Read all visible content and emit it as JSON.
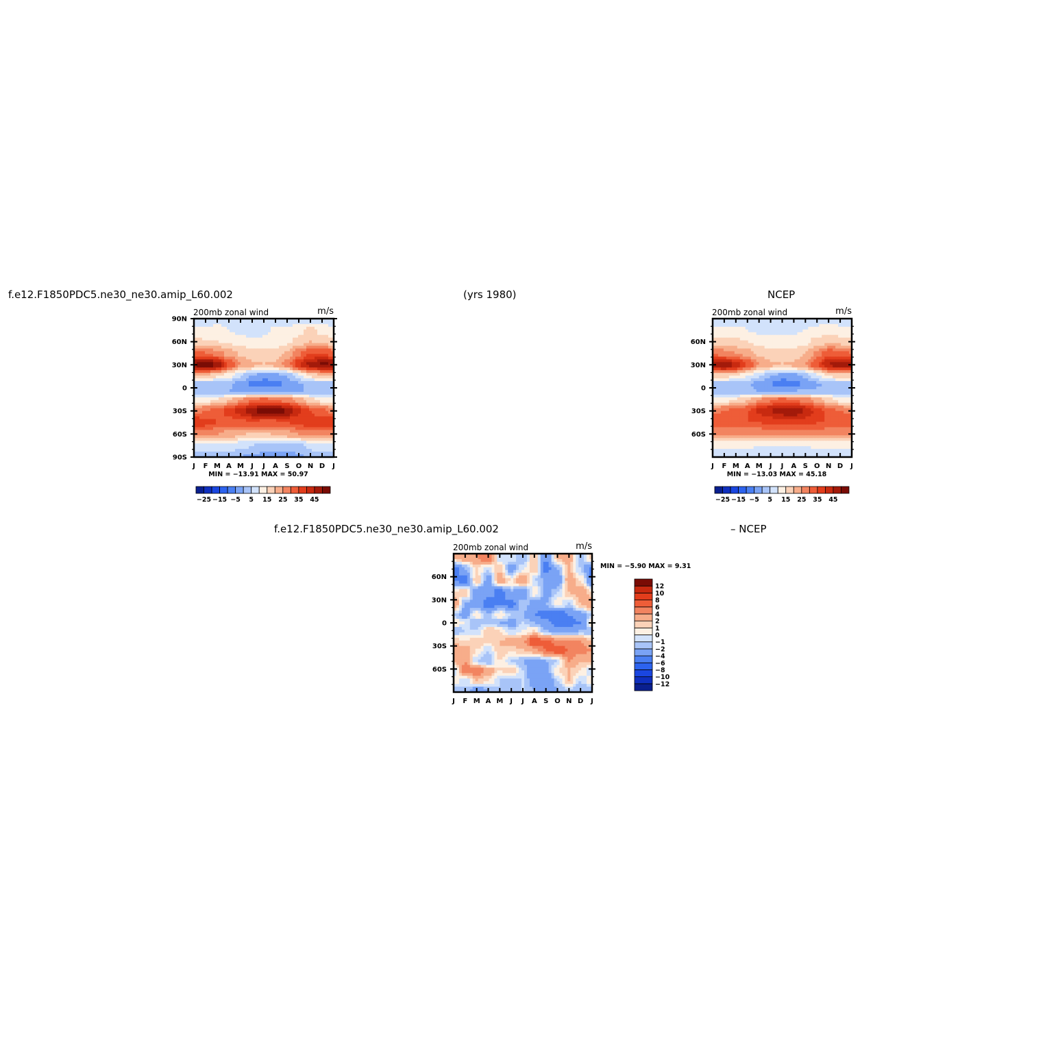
{
  "header": {
    "case_name": "f.e12.F1850PDC5.ne30_ne30.amip_L60.002",
    "years": "(yrs 1980)",
    "obs_name": "NCEP",
    "diff_case_name": "f.e12.F1850PDC5.ne30_ne30.amip_L60.002",
    "diff_obs_name": "– NCEP"
  },
  "chart_data": [
    {
      "type": "heatmap",
      "id": "model",
      "left_title": "200mb zonal wind",
      "right_title": "m/s",
      "x_ticks": [
        "J",
        "F",
        "M",
        "A",
        "M",
        "J",
        "J",
        "A",
        "S",
        "O",
        "N",
        "D",
        "J"
      ],
      "y_ticks": [
        "90N",
        "60N",
        "30N",
        "0",
        "30S",
        "60S",
        "90S"
      ],
      "ylim": [
        -90,
        90
      ],
      "stats": "MIN = −13.91  MAX =   50.97",
      "colorbar": {
        "orientation": "horizontal",
        "labels": [
          "−25",
          "−15",
          "−5",
          "5",
          "15",
          "25",
          "35",
          "45"
        ],
        "levels": [
          -30,
          -25,
          -20,
          -15,
          -10,
          -5,
          0,
          5,
          10,
          15,
          20,
          25,
          30,
          35,
          40,
          45,
          50
        ],
        "colors": [
          "#0a1f8f",
          "#0f2fbf",
          "#1a46e0",
          "#2d63ee",
          "#4a7ff2",
          "#7aa3f5",
          "#a8c4f8",
          "#d2e2fb",
          "#fdf0e3",
          "#fbd2b8",
          "#f7ad8a",
          "#f28460",
          "#ee5d38",
          "#e23d1c",
          "#c82a10",
          "#a31a0a",
          "#7a0c05"
        ]
      },
      "monthly_profiles": [
        {
          "lat": 90,
          "u": [
            2,
            2,
            2,
            3,
            3,
            3,
            2,
            2,
            2,
            2,
            2,
            2
          ]
        },
        {
          "lat": 75,
          "u": [
            6,
            6,
            7,
            5,
            3,
            2,
            4,
            6,
            6,
            8,
            12,
            8
          ]
        },
        {
          "lat": 60,
          "u": [
            12,
            10,
            10,
            9,
            8,
            6,
            6,
            6,
            9,
            12,
            15,
            14
          ]
        },
        {
          "lat": 45,
          "u": [
            28,
            25,
            22,
            18,
            14,
            12,
            12,
            12,
            16,
            24,
            30,
            30
          ]
        },
        {
          "lat": 30,
          "u": [
            45,
            50,
            44,
            30,
            20,
            16,
            15,
            16,
            22,
            35,
            42,
            46
          ]
        },
        {
          "lat": 15,
          "u": [
            15,
            13,
            10,
            6,
            0,
            -6,
            -8,
            -8,
            -5,
            3,
            10,
            14
          ]
        },
        {
          "lat": 5,
          "u": [
            -2,
            -3,
            -3,
            -4,
            -8,
            -11,
            -13,
            -12,
            -9,
            -6,
            -4,
            -2
          ]
        },
        {
          "lat": -5,
          "u": [
            -4,
            -4,
            -5,
            -5,
            -6,
            -6,
            -7,
            -6,
            -5,
            -5,
            -5,
            -5
          ]
        },
        {
          "lat": -15,
          "u": [
            8,
            8,
            10,
            14,
            20,
            24,
            26,
            25,
            22,
            18,
            12,
            8
          ]
        },
        {
          "lat": -30,
          "u": [
            24,
            25,
            28,
            32,
            38,
            44,
            48,
            51,
            45,
            36,
            30,
            26
          ]
        },
        {
          "lat": -45,
          "u": [
            34,
            32,
            30,
            28,
            28,
            30,
            28,
            28,
            30,
            32,
            34,
            35
          ]
        },
        {
          "lat": -60,
          "u": [
            22,
            22,
            20,
            18,
            16,
            14,
            14,
            16,
            18,
            20,
            20,
            22
          ]
        },
        {
          "lat": -75,
          "u": [
            4,
            4,
            4,
            3,
            2,
            0,
            -2,
            -3,
            -3,
            -2,
            2,
            4
          ]
        },
        {
          "lat": -90,
          "u": [
            -2,
            -2,
            -3,
            -3,
            -5,
            -6,
            -7,
            -8,
            -8,
            -6,
            -4,
            -2
          ]
        }
      ]
    },
    {
      "type": "heatmap",
      "id": "obs",
      "left_title": "200mb zonal wind",
      "right_title": "m/s",
      "x_ticks": [
        "J",
        "F",
        "M",
        "A",
        "M",
        "J",
        "J",
        "A",
        "S",
        "O",
        "N",
        "D",
        "J"
      ],
      "y_ticks": [
        "60N",
        "30N",
        "0",
        "30S",
        "60S"
      ],
      "ylim": [
        -90,
        90
      ],
      "stats": "MIN = −13.03  MAX =   45.18",
      "colorbar": {
        "orientation": "horizontal",
        "labels": [
          "−25",
          "−15",
          "−5",
          "5",
          "15",
          "25",
          "35",
          "45"
        ],
        "levels": [
          -30,
          -25,
          -20,
          -15,
          -10,
          -5,
          0,
          5,
          10,
          15,
          20,
          25,
          30,
          35,
          40,
          45,
          50
        ],
        "colors": [
          "#0a1f8f",
          "#0f2fbf",
          "#1a46e0",
          "#2d63ee",
          "#4a7ff2",
          "#7aa3f5",
          "#a8c4f8",
          "#d2e2fb",
          "#fdf0e3",
          "#fbd2b8",
          "#f7ad8a",
          "#f28460",
          "#ee5d38",
          "#e23d1c",
          "#c82a10",
          "#a31a0a",
          "#7a0c05"
        ]
      },
      "monthly_profiles": [
        {
          "lat": 90,
          "u": [
            3,
            3,
            3,
            3,
            3,
            3,
            3,
            3,
            3,
            3,
            3,
            3
          ]
        },
        {
          "lat": 75,
          "u": [
            6,
            6,
            6,
            5,
            4,
            3,
            3,
            4,
            5,
            6,
            7,
            6
          ]
        },
        {
          "lat": 60,
          "u": [
            12,
            12,
            11,
            10,
            8,
            7,
            7,
            7,
            9,
            12,
            14,
            13
          ]
        },
        {
          "lat": 45,
          "u": [
            24,
            22,
            20,
            17,
            14,
            12,
            12,
            12,
            15,
            22,
            28,
            28
          ]
        },
        {
          "lat": 30,
          "u": [
            42,
            45,
            40,
            30,
            20,
            16,
            15,
            16,
            20,
            30,
            40,
            44
          ]
        },
        {
          "lat": 15,
          "u": [
            12,
            11,
            9,
            5,
            0,
            -5,
            -8,
            -8,
            -4,
            3,
            9,
            12
          ]
        },
        {
          "lat": 5,
          "u": [
            -2,
            -2,
            -3,
            -4,
            -7,
            -10,
            -13,
            -12,
            -9,
            -6,
            -4,
            -2
          ]
        },
        {
          "lat": -5,
          "u": [
            -3,
            -3,
            -4,
            -4,
            -5,
            -5,
            -6,
            -5,
            -4,
            -4,
            -4,
            -3
          ]
        },
        {
          "lat": -15,
          "u": [
            8,
            8,
            10,
            14,
            20,
            24,
            26,
            25,
            22,
            18,
            12,
            8
          ]
        },
        {
          "lat": -30,
          "u": [
            24,
            25,
            27,
            30,
            36,
            40,
            43,
            45,
            40,
            33,
            28,
            25
          ]
        },
        {
          "lat": -45,
          "u": [
            30,
            30,
            30,
            30,
            30,
            32,
            32,
            32,
            32,
            30,
            30,
            30
          ]
        },
        {
          "lat": -60,
          "u": [
            20,
            20,
            20,
            20,
            20,
            22,
            22,
            22,
            22,
            22,
            20,
            20
          ]
        },
        {
          "lat": -75,
          "u": [
            6,
            6,
            6,
            6,
            5,
            5,
            5,
            5,
            5,
            6,
            6,
            6
          ]
        },
        {
          "lat": -90,
          "u": [
            1,
            1,
            1,
            1,
            1,
            1,
            1,
            1,
            1,
            1,
            1,
            1
          ]
        }
      ]
    },
    {
      "type": "heatmap",
      "id": "diff",
      "left_title": "200mb zonal wind",
      "right_title": "m/s",
      "x_ticks": [
        "J",
        "F",
        "M",
        "A",
        "M",
        "J",
        "J",
        "A",
        "S",
        "O",
        "N",
        "D",
        "J"
      ],
      "y_ticks": [
        "60N",
        "30N",
        "0",
        "30S",
        "60S"
      ],
      "ylim": [
        -90,
        90
      ],
      "stats": "MIN =   −5.90  MAX =    9.31",
      "colorbar": {
        "orientation": "vertical",
        "labels": [
          "12",
          "10",
          "8",
          "6",
          "4",
          "2",
          "1",
          "0",
          "−1",
          "−2",
          "−4",
          "−6",
          "−8",
          "−10",
          "−12"
        ],
        "levels": [
          -12,
          -10,
          -8,
          -6,
          -4,
          -2,
          -1,
          0,
          1,
          2,
          4,
          6,
          8,
          10,
          12
        ],
        "colors": [
          "#0a1f8f",
          "#0f2fbf",
          "#1a46e0",
          "#2d63ee",
          "#4a7ff2",
          "#7aa3f5",
          "#a8c4f8",
          "#d2e2fb",
          "#fdf0e3",
          "#fbd2b8",
          "#f7ad8a",
          "#f28460",
          "#ee5d38",
          "#e23d1c",
          "#c82a10",
          "#7a0c05"
        ]
      },
      "monthly_profiles": [
        {
          "lat": 85,
          "u": [
            2,
            3,
            4,
            6,
            -1,
            0,
            -2,
            2,
            -4,
            2,
            3,
            -2
          ]
        },
        {
          "lat": 70,
          "u": [
            -5,
            -2,
            1,
            -1,
            2,
            -3,
            0,
            2,
            -5,
            -2,
            2,
            -1
          ]
        },
        {
          "lat": 55,
          "u": [
            -4,
            -5,
            2,
            -3,
            3,
            1,
            4,
            -1,
            -2,
            -4,
            3,
            1
          ]
        },
        {
          "lat": 40,
          "u": [
            1,
            2,
            -4,
            -3,
            -5,
            -2,
            -4,
            1,
            -3,
            -1,
            2,
            3
          ]
        },
        {
          "lat": 25,
          "u": [
            4,
            -2,
            -3,
            -5,
            -4,
            -5,
            -1,
            -3,
            -2,
            1,
            -1,
            2
          ]
        },
        {
          "lat": 10,
          "u": [
            -1,
            -3,
            1,
            -2,
            1,
            -1,
            -2,
            -4,
            -5,
            -6,
            -4,
            -3
          ]
        },
        {
          "lat": 0,
          "u": [
            1,
            0,
            -2,
            -1,
            -2,
            -3,
            -1,
            -2,
            -3,
            -5,
            -5,
            -4
          ]
        },
        {
          "lat": -10,
          "u": [
            -2,
            -1,
            -1,
            2,
            1,
            -1,
            0,
            1,
            -2,
            -3,
            -3,
            -2
          ]
        },
        {
          "lat": -25,
          "u": [
            2,
            1,
            2,
            1,
            2,
            3,
            4,
            8,
            7,
            5,
            5,
            4
          ]
        },
        {
          "lat": -35,
          "u": [
            4,
            3,
            1,
            -1,
            2,
            1,
            2,
            3,
            6,
            8,
            6,
            5
          ]
        },
        {
          "lat": -50,
          "u": [
            2,
            4,
            -1,
            -2,
            1,
            -1,
            -2,
            -3,
            -2,
            -1,
            4,
            2
          ]
        },
        {
          "lat": -62,
          "u": [
            -1,
            5,
            6,
            3,
            1,
            2,
            -1,
            -4,
            -3,
            1,
            2,
            1
          ]
        },
        {
          "lat": -75,
          "u": [
            1,
            -1,
            2,
            1,
            -1,
            -2,
            -1,
            -3,
            -4,
            -1,
            2,
            -1
          ]
        },
        {
          "lat": -87,
          "u": [
            -2,
            -1,
            -3,
            -2,
            -1,
            -2,
            -1,
            -2,
            -3,
            -2,
            -1,
            -2
          ]
        }
      ]
    }
  ]
}
